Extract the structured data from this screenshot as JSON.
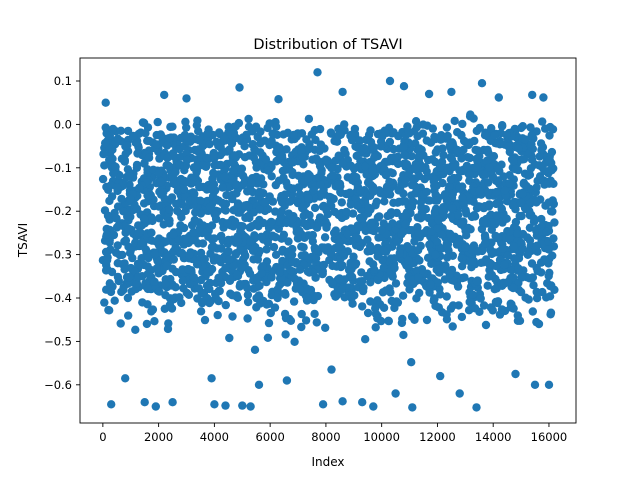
{
  "chart_data": {
    "type": "scatter",
    "title": "Distribution of TSAVI",
    "xlabel": "Index",
    "ylabel": "TSAVI",
    "xlim": [
      -820,
      16970
    ],
    "ylim": [
      -0.688,
      0.153
    ],
    "xticks": [
      0,
      2000,
      4000,
      6000,
      8000,
      10000,
      12000,
      14000,
      16000
    ],
    "xtick_labels": [
      "0",
      "2000",
      "4000",
      "6000",
      "8000",
      "10000",
      "12000",
      "14000",
      "16000"
    ],
    "yticks": [
      0.1,
      0.0,
      -0.1,
      -0.2,
      -0.3,
      -0.4,
      -0.5,
      -0.6
    ],
    "ytick_labels": [
      "0.1",
      "0.0",
      "−0.1",
      "−0.2",
      "−0.3",
      "−0.4",
      "−0.5",
      "−0.6"
    ],
    "grid": false,
    "marker_color": "#1f77b4",
    "n_points": 16200,
    "dense_band": [
      -0.34,
      -0.02
    ],
    "outliers": [
      [
        100,
        0.05
      ],
      [
        7700,
        0.12
      ],
      [
        10300,
        0.1
      ],
      [
        10800,
        0.088
      ],
      [
        13600,
        0.095
      ],
      [
        4900,
        0.085
      ],
      [
        8600,
        0.075
      ],
      [
        12500,
        0.075
      ],
      [
        15400,
        0.068
      ],
      [
        15800,
        0.062
      ],
      [
        2200,
        0.068
      ],
      [
        3000,
        0.06
      ],
      [
        6300,
        0.058
      ],
      [
        11700,
        0.07
      ],
      [
        14200,
        0.062
      ],
      [
        300,
        -0.645
      ],
      [
        1500,
        -0.64
      ],
      [
        1900,
        -0.65
      ],
      [
        2500,
        -0.64
      ],
      [
        4000,
        -0.645
      ],
      [
        4400,
        -0.648
      ],
      [
        5000,
        -0.648
      ],
      [
        5300,
        -0.65
      ],
      [
        7900,
        -0.645
      ],
      [
        8600,
        -0.638
      ],
      [
        9300,
        -0.64
      ],
      [
        9700,
        -0.65
      ],
      [
        11100,
        -0.652
      ],
      [
        13400,
        -0.652
      ],
      [
        3900,
        -0.585
      ],
      [
        6600,
        -0.59
      ],
      [
        10500,
        -0.62
      ],
      [
        12800,
        -0.62
      ],
      [
        15500,
        -0.6
      ],
      [
        16000,
        -0.6
      ],
      [
        800,
        -0.585
      ],
      [
        5600,
        -0.6
      ],
      [
        8200,
        -0.565
      ],
      [
        14800,
        -0.575
      ],
      [
        12100,
        -0.58
      ]
    ]
  }
}
